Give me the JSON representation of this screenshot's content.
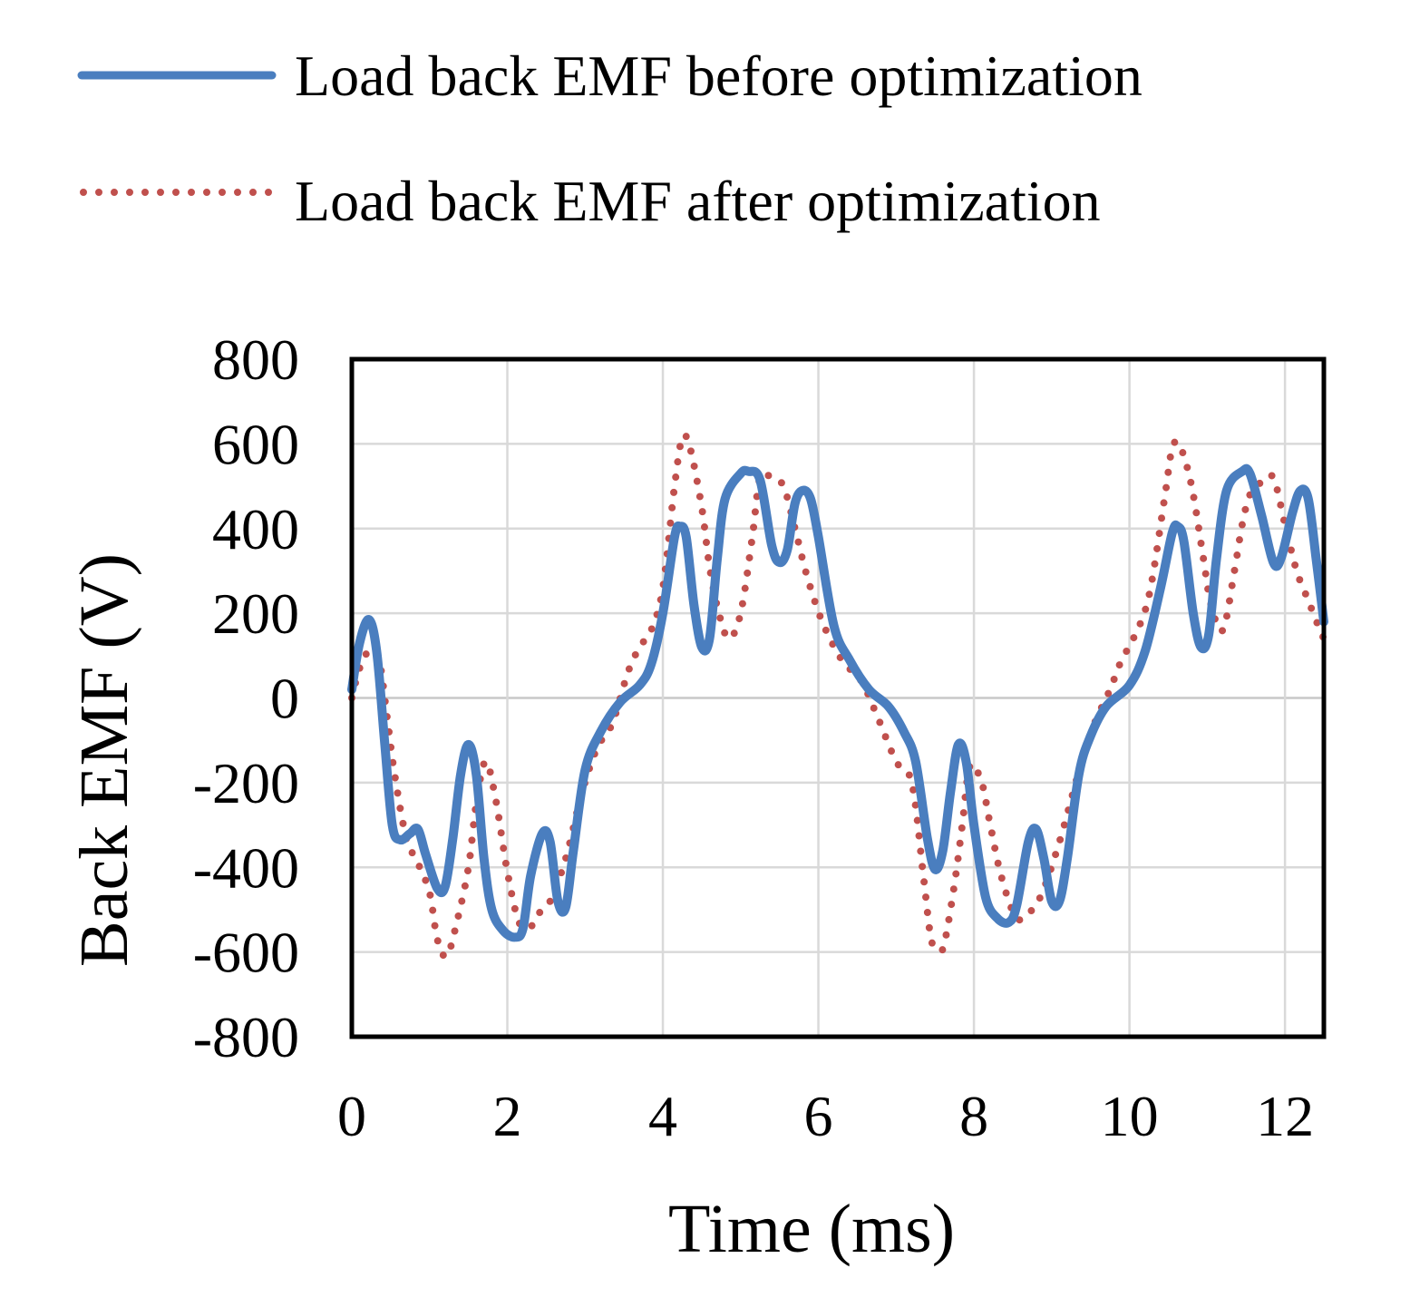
{
  "chart_data": {
    "type": "line",
    "title": "",
    "xlabel": "Time (ms)",
    "ylabel": "Back EMF (V)",
    "xlim": [
      0,
      12.5
    ],
    "ylim": [
      -800,
      800
    ],
    "x_ticks": [
      0,
      2,
      4,
      6,
      8,
      10,
      12
    ],
    "y_ticks": [
      800,
      600,
      400,
      200,
      0,
      -200,
      -400,
      -600,
      -800
    ],
    "grid": true,
    "legend_position": "top",
    "series": [
      {
        "name": "Load back EMF before optimization",
        "color": "#4a7ebf",
        "style": "solid",
        "points": [
          [
            0,
            20
          ],
          [
            0.1,
            130
          ],
          [
            0.22,
            185
          ],
          [
            0.32,
            110
          ],
          [
            0.42,
            -100
          ],
          [
            0.52,
            -300
          ],
          [
            0.62,
            -335
          ],
          [
            0.75,
            -320
          ],
          [
            0.85,
            -310
          ],
          [
            0.95,
            -370
          ],
          [
            1.1,
            -450
          ],
          [
            1.2,
            -445
          ],
          [
            1.3,
            -330
          ],
          [
            1.4,
            -180
          ],
          [
            1.5,
            -110
          ],
          [
            1.6,
            -180
          ],
          [
            1.7,
            -380
          ],
          [
            1.8,
            -500
          ],
          [
            1.95,
            -550
          ],
          [
            2.1,
            -565
          ],
          [
            2.2,
            -545
          ],
          [
            2.3,
            -420
          ],
          [
            2.45,
            -320
          ],
          [
            2.55,
            -340
          ],
          [
            2.65,
            -480
          ],
          [
            2.75,
            -495
          ],
          [
            2.85,
            -360
          ],
          [
            3.0,
            -170
          ],
          [
            3.2,
            -80
          ],
          [
            3.45,
            -10
          ],
          [
            3.7,
            30
          ],
          [
            3.85,
            80
          ],
          [
            4.0,
            200
          ],
          [
            4.15,
            380
          ],
          [
            4.22,
            405
          ],
          [
            4.3,
            380
          ],
          [
            4.4,
            220
          ],
          [
            4.5,
            120
          ],
          [
            4.6,
            140
          ],
          [
            4.7,
            330
          ],
          [
            4.8,
            470
          ],
          [
            5.0,
            530
          ],
          [
            5.1,
            535
          ],
          [
            5.25,
            515
          ],
          [
            5.4,
            360
          ],
          [
            5.5,
            320
          ],
          [
            5.6,
            350
          ],
          [
            5.7,
            460
          ],
          [
            5.8,
            490
          ],
          [
            5.9,
            470
          ],
          [
            6.0,
            380
          ],
          [
            6.2,
            170
          ],
          [
            6.4,
            90
          ],
          [
            6.65,
            20
          ],
          [
            6.9,
            -20
          ],
          [
            7.1,
            -80
          ],
          [
            7.25,
            -150
          ],
          [
            7.4,
            -330
          ],
          [
            7.5,
            -405
          ],
          [
            7.6,
            -360
          ],
          [
            7.7,
            -220
          ],
          [
            7.8,
            -110
          ],
          [
            7.9,
            -150
          ],
          [
            8.0,
            -300
          ],
          [
            8.15,
            -470
          ],
          [
            8.3,
            -520
          ],
          [
            8.45,
            -530
          ],
          [
            8.55,
            -490
          ],
          [
            8.7,
            -340
          ],
          [
            8.8,
            -310
          ],
          [
            8.9,
            -380
          ],
          [
            9.0,
            -480
          ],
          [
            9.1,
            -480
          ],
          [
            9.2,
            -380
          ],
          [
            9.35,
            -180
          ],
          [
            9.5,
            -90
          ],
          [
            9.7,
            -20
          ],
          [
            10.0,
            30
          ],
          [
            10.2,
            110
          ],
          [
            10.4,
            260
          ],
          [
            10.55,
            390
          ],
          [
            10.62,
            405
          ],
          [
            10.7,
            370
          ],
          [
            10.82,
            200
          ],
          [
            10.92,
            120
          ],
          [
            11.02,
            150
          ],
          [
            11.12,
            330
          ],
          [
            11.25,
            490
          ],
          [
            11.45,
            535
          ],
          [
            11.55,
            530
          ],
          [
            11.7,
            430
          ],
          [
            11.85,
            320
          ],
          [
            11.95,
            330
          ],
          [
            12.1,
            440
          ],
          [
            12.2,
            490
          ],
          [
            12.3,
            470
          ],
          [
            12.4,
            330
          ],
          [
            12.5,
            180
          ]
        ]
      },
      {
        "name": "Load back EMF after optimization",
        "color": "#c0504d",
        "style": "dotted",
        "points": [
          [
            0,
            0
          ],
          [
            0.1,
            70
          ],
          [
            0.22,
            110
          ],
          [
            0.35,
            90
          ],
          [
            0.45,
            -40
          ],
          [
            0.55,
            -180
          ],
          [
            0.7,
            -330
          ],
          [
            0.85,
            -390
          ],
          [
            1.0,
            -460
          ],
          [
            1.1,
            -570
          ],
          [
            1.22,
            -610
          ],
          [
            1.35,
            -530
          ],
          [
            1.5,
            -400
          ],
          [
            1.6,
            -250
          ],
          [
            1.72,
            -150
          ],
          [
            1.85,
            -240
          ],
          [
            2.0,
            -410
          ],
          [
            2.15,
            -530
          ],
          [
            2.3,
            -540
          ],
          [
            2.4,
            -510
          ],
          [
            2.55,
            -480
          ],
          [
            2.75,
            -380
          ],
          [
            2.95,
            -230
          ],
          [
            3.15,
            -120
          ],
          [
            3.35,
            -60
          ],
          [
            3.55,
            60
          ],
          [
            3.7,
            120
          ],
          [
            3.85,
            160
          ],
          [
            4.0,
            260
          ],
          [
            4.15,
            500
          ],
          [
            4.25,
            615
          ],
          [
            4.35,
            590
          ],
          [
            4.5,
            450
          ],
          [
            4.6,
            310
          ],
          [
            4.72,
            200
          ],
          [
            4.85,
            140
          ],
          [
            5.0,
            200
          ],
          [
            5.15,
            380
          ],
          [
            5.25,
            520
          ],
          [
            5.4,
            520
          ],
          [
            5.55,
            500
          ],
          [
            5.7,
            400
          ],
          [
            5.85,
            290
          ],
          [
            6.05,
            180
          ],
          [
            6.3,
            90
          ],
          [
            6.55,
            40
          ],
          [
            6.75,
            -40
          ],
          [
            7.0,
            -150
          ],
          [
            7.2,
            -200
          ],
          [
            7.35,
            -420
          ],
          [
            7.45,
            -570
          ],
          [
            7.55,
            -595
          ],
          [
            7.62,
            -580
          ],
          [
            7.75,
            -440
          ],
          [
            7.85,
            -300
          ],
          [
            7.95,
            -160
          ],
          [
            8.1,
            -200
          ],
          [
            8.2,
            -290
          ],
          [
            8.35,
            -420
          ],
          [
            8.55,
            -520
          ],
          [
            8.75,
            -500
          ],
          [
            8.9,
            -450
          ],
          [
            9.1,
            -340
          ],
          [
            9.25,
            -240
          ],
          [
            9.4,
            -140
          ],
          [
            9.55,
            -60
          ],
          [
            9.75,
            20
          ],
          [
            9.9,
            90
          ],
          [
            10.05,
            140
          ],
          [
            10.25,
            240
          ],
          [
            10.45,
            470
          ],
          [
            10.55,
            590
          ],
          [
            10.65,
            595
          ],
          [
            10.8,
            500
          ],
          [
            10.95,
            330
          ],
          [
            11.05,
            220
          ],
          [
            11.2,
            160
          ],
          [
            11.35,
            300
          ],
          [
            11.45,
            410
          ],
          [
            11.55,
            480
          ],
          [
            11.7,
            510
          ],
          [
            11.85,
            520
          ],
          [
            12.0,
            410
          ],
          [
            12.15,
            300
          ],
          [
            12.3,
            230
          ],
          [
            12.45,
            160
          ],
          [
            12.5,
            140
          ]
        ]
      }
    ]
  }
}
